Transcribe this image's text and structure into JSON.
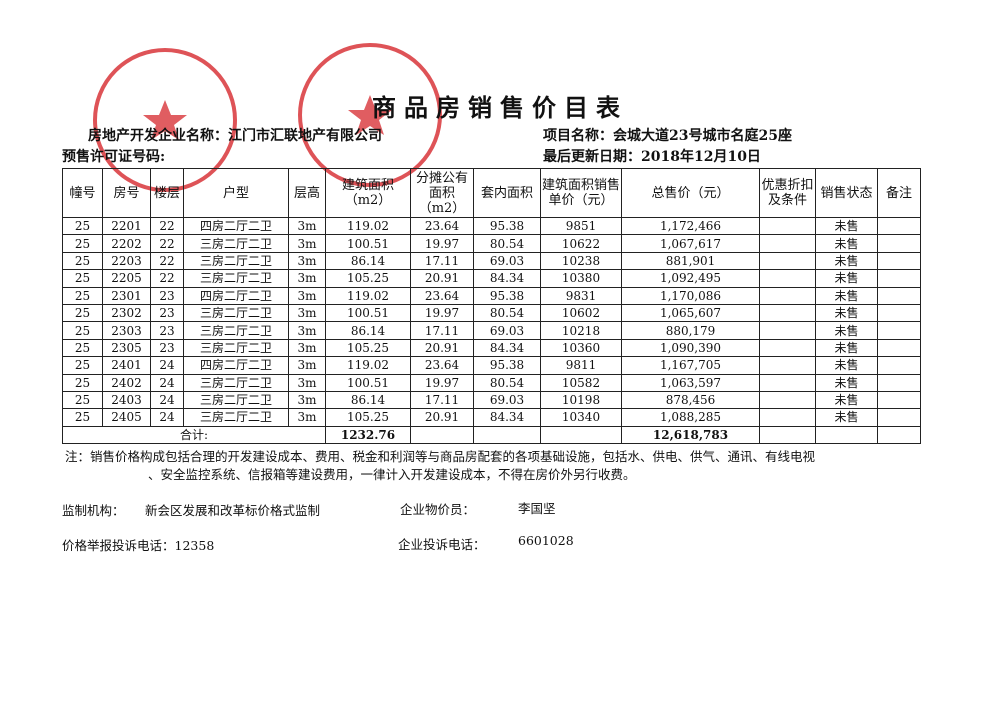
{
  "title": "商品房销售价目表",
  "developer": {
    "label": "房地产开发企业名称：",
    "value": "江门市汇联地产有限公司"
  },
  "project": {
    "label": "项目名称：",
    "value": "会城大道23号城市名庭25座"
  },
  "permit": {
    "label": "预售许可证号码:",
    "value": ""
  },
  "updated": {
    "label": "最后更新日期：",
    "value": "2018年12月10日"
  },
  "table": {
    "headers": [
      "幢号",
      "房号",
      "楼层",
      "户型",
      "层高",
      "建筑面积（m2）",
      "分摊公有面积（m2）",
      "套内面积",
      "建筑面积销售单价（元）",
      "总售价（元）",
      "优惠折扣及条件",
      "销售状态",
      "备注"
    ],
    "rows": [
      [
        "25",
        "2201",
        "22",
        "四房二厅二卫",
        "3m",
        "119.02",
        "23.64",
        "95.38",
        "9851",
        "1,172,466",
        "",
        "未售",
        ""
      ],
      [
        "25",
        "2202",
        "22",
        "三房二厅二卫",
        "3m",
        "100.51",
        "19.97",
        "80.54",
        "10622",
        "1,067,617",
        "",
        "未售",
        ""
      ],
      [
        "25",
        "2203",
        "22",
        "三房二厅二卫",
        "3m",
        "86.14",
        "17.11",
        "69.03",
        "10238",
        "881,901",
        "",
        "未售",
        ""
      ],
      [
        "25",
        "2205",
        "22",
        "三房二厅二卫",
        "3m",
        "105.25",
        "20.91",
        "84.34",
        "10380",
        "1,092,495",
        "",
        "未售",
        ""
      ],
      [
        "25",
        "2301",
        "23",
        "四房二厅二卫",
        "3m",
        "119.02",
        "23.64",
        "95.38",
        "9831",
        "1,170,086",
        "",
        "未售",
        ""
      ],
      [
        "25",
        "2302",
        "23",
        "三房二厅二卫",
        "3m",
        "100.51",
        "19.97",
        "80.54",
        "10602",
        "1,065,607",
        "",
        "未售",
        ""
      ],
      [
        "25",
        "2303",
        "23",
        "三房二厅二卫",
        "3m",
        "86.14",
        "17.11",
        "69.03",
        "10218",
        "880,179",
        "",
        "未售",
        ""
      ],
      [
        "25",
        "2305",
        "23",
        "三房二厅二卫",
        "3m",
        "105.25",
        "20.91",
        "84.34",
        "10360",
        "1,090,390",
        "",
        "未售",
        ""
      ],
      [
        "25",
        "2401",
        "24",
        "四房二厅二卫",
        "3m",
        "119.02",
        "23.64",
        "95.38",
        "9811",
        "1,167,705",
        "",
        "未售",
        ""
      ],
      [
        "25",
        "2402",
        "24",
        "三房二厅二卫",
        "3m",
        "100.51",
        "19.97",
        "80.54",
        "10582",
        "1,063,597",
        "",
        "未售",
        ""
      ],
      [
        "25",
        "2403",
        "24",
        "三房二厅二卫",
        "3m",
        "86.14",
        "17.11",
        "69.03",
        "10198",
        "878,456",
        "",
        "未售",
        ""
      ],
      [
        "25",
        "2405",
        "24",
        "三房二厅二卫",
        "3m",
        "105.25",
        "20.91",
        "84.34",
        "10340",
        "1,088,285",
        "",
        "未售",
        ""
      ]
    ],
    "total": {
      "label": "合计:",
      "area": "1232.76",
      "price": "12,618,783"
    }
  },
  "note": {
    "line1": "注：销售价格构成包括合理的开发建设成本、费用、税金和利润等与商品房配套的各项基础设施，包括水、供电、供气、通讯、有线电视",
    "line2": "、安全监控系统、信报箱等建设费用，一律计入开发建设成本，不得在房价外另行收费。"
  },
  "footer": {
    "supervisor_label": "监制机构：",
    "supervisor": "新会区发展和改革标价格式监制",
    "pricer_label": "企业物价员：",
    "pricer": "李国坚",
    "hotline_label": "价格举报投诉电话：",
    "hotline": "12358",
    "complaint_label": "企业投诉电话：",
    "complaint": "6601028"
  },
  "colors": {
    "stamp": "#d8353a"
  }
}
